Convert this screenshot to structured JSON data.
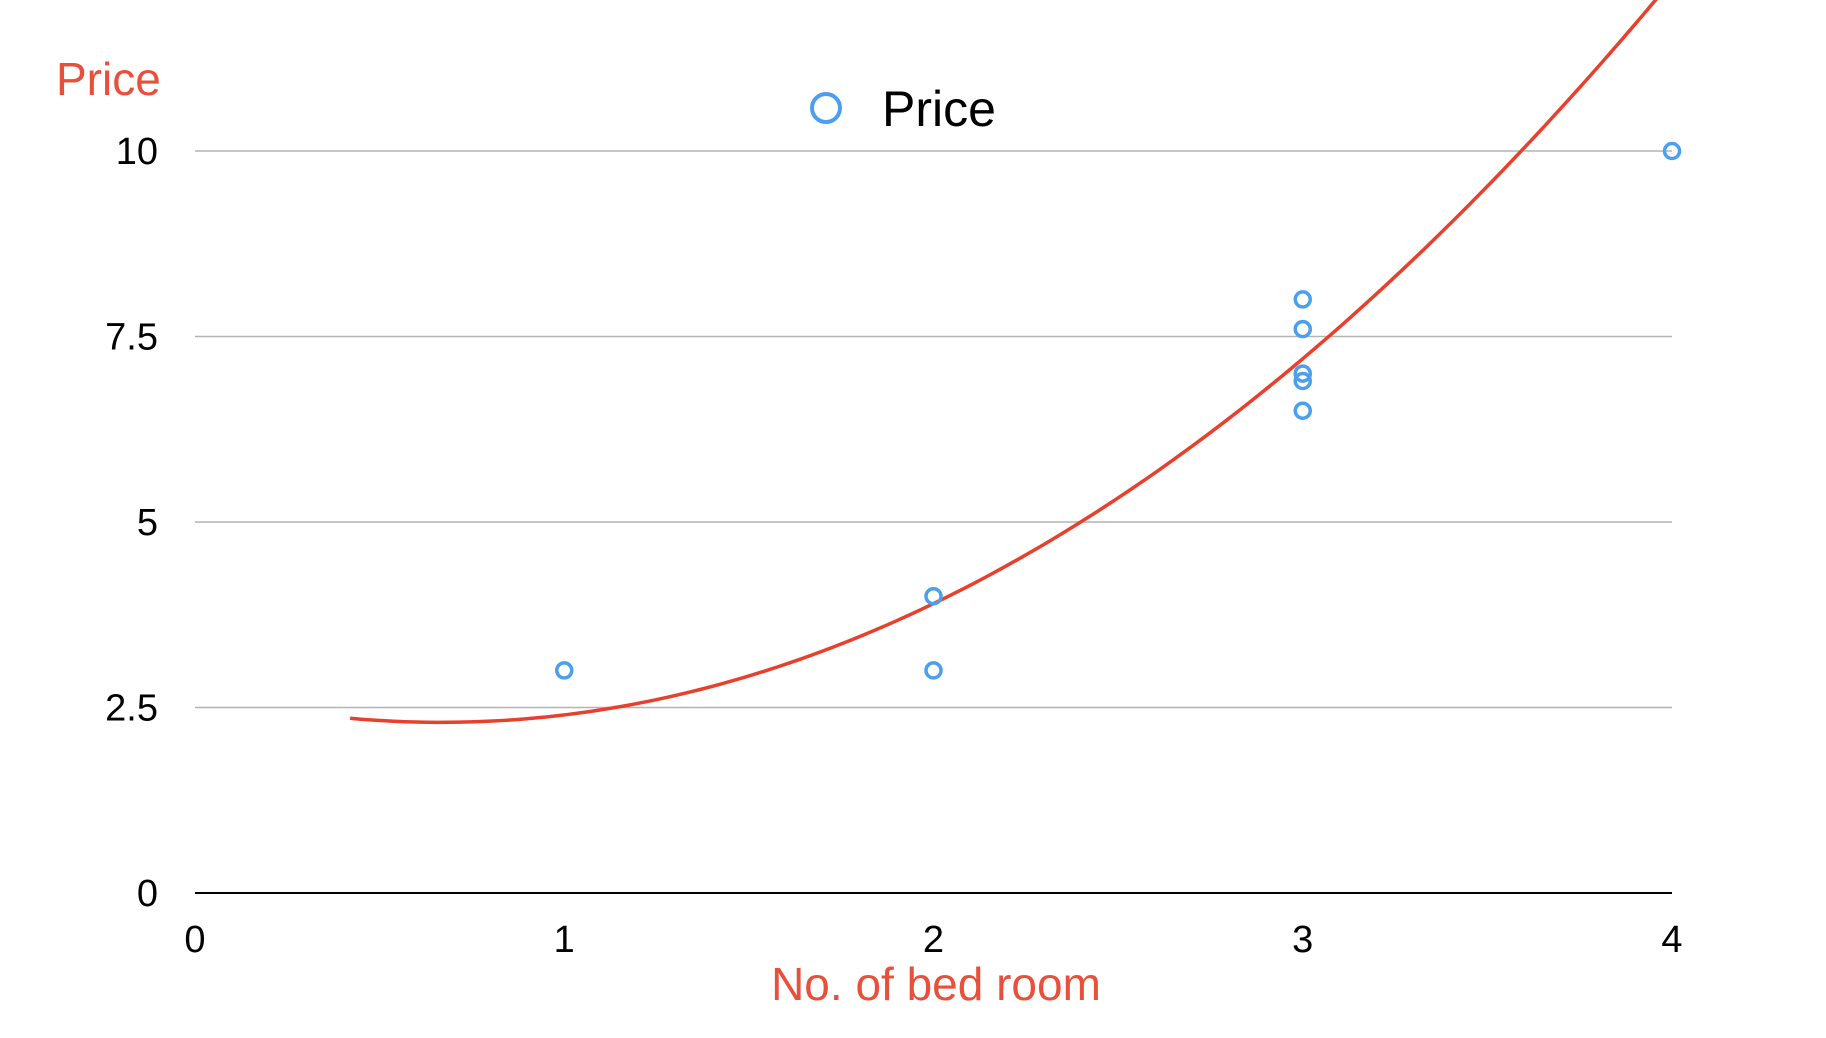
{
  "chart_data": {
    "type": "scatter",
    "title": "",
    "xlabel": "No. of bed room",
    "ylabel": "Price",
    "xlim": [
      0,
      4
    ],
    "ylim": [
      0,
      10
    ],
    "x_ticks": [
      "0",
      "1",
      "2",
      "3",
      "4"
    ],
    "y_ticks": [
      "0",
      "2.5",
      "5",
      "7.5",
      "10"
    ],
    "grid": true,
    "legend": {
      "placement": "top-center",
      "entries": [
        "Price"
      ]
    },
    "series": [
      {
        "name": "Price",
        "type": "scatter",
        "color": "#4a9ff0",
        "points": [
          {
            "x": 1,
            "y": 3
          },
          {
            "x": 2,
            "y": 4
          },
          {
            "x": 2,
            "y": 3
          },
          {
            "x": 3,
            "y": 8
          },
          {
            "x": 3,
            "y": 7.6
          },
          {
            "x": 3,
            "y": 7
          },
          {
            "x": 3,
            "y": 6.9
          },
          {
            "x": 3,
            "y": 6.5
          },
          {
            "x": 4,
            "y": 10
          }
        ]
      }
    ],
    "trendline": {
      "type": "polynomial",
      "color": "#e8402c",
      "x_range": [
        0.42,
        3.98
      ],
      "coefficients": [
        2.7,
        -1.2,
        0.9
      ]
    },
    "colors": {
      "axis_title": "#e8503c",
      "grid": "#b4b4b4",
      "axis": "#000000"
    }
  }
}
